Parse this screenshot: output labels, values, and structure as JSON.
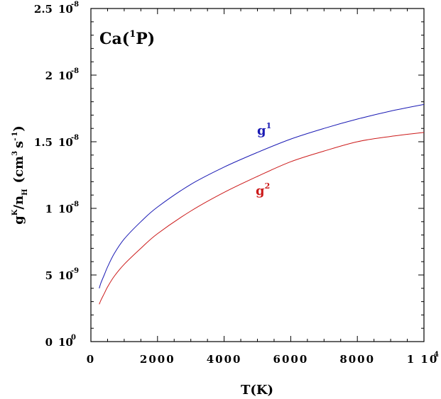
{
  "chart_data": {
    "type": "line",
    "title": {
      "prefix": "Ca(",
      "sup": "1",
      "suffix": "P)"
    },
    "xlabel": "T(K)",
    "ylabel": {
      "g": "g",
      "k": "K",
      "slash": "/",
      "n": "n",
      "H": "H",
      "unit_open": "(cm",
      "cube": "3",
      "s": "s",
      "neg": "-",
      "one": "1",
      "unit_close": ")"
    },
    "xlim": [
      0,
      10000
    ],
    "ylim": [
      0,
      2.5e-08
    ],
    "x_ticks": [
      {
        "value": 0,
        "label": "0",
        "exp": ""
      },
      {
        "value": 2000,
        "label": "2000",
        "exp": ""
      },
      {
        "value": 4000,
        "label": "4000",
        "exp": ""
      },
      {
        "value": 6000,
        "label": "6000",
        "exp": ""
      },
      {
        "value": 8000,
        "label": "8000",
        "exp": ""
      },
      {
        "value": 10000,
        "label": "1 10",
        "exp": "4"
      }
    ],
    "y_ticks": [
      {
        "value": 0,
        "mant": "0",
        "base": "10",
        "exp": "0"
      },
      {
        "value": 5e-09,
        "mant": "5",
        "base": "10",
        "exp": "-9"
      },
      {
        "value": 1e-08,
        "mant": "1",
        "base": "10",
        "exp": "-8"
      },
      {
        "value": 1.5e-08,
        "mant": "1.5",
        "base": "10",
        "exp": "-8"
      },
      {
        "value": 2e-08,
        "mant": "2",
        "base": "10",
        "exp": "-8"
      },
      {
        "value": 2.5e-08,
        "mant": "2.5",
        "base": "10",
        "exp": "-8"
      }
    ],
    "series": [
      {
        "name": "g",
        "name_sup": "1",
        "color": "#1a1ab4",
        "x": [
          250,
          300,
          400,
          500,
          700,
          1000,
          1500,
          2000,
          3000,
          4000,
          5000,
          6000,
          7000,
          8000,
          9000,
          10000
        ],
        "y": [
          4e-09,
          4.4e-09,
          5e-09,
          5.6e-09,
          6.6e-09,
          7.7e-09,
          9e-09,
          1.01e-08,
          1.18e-08,
          1.31e-08,
          1.42e-08,
          1.52e-08,
          1.6e-08,
          1.67e-08,
          1.73e-08,
          1.78e-08
        ]
      },
      {
        "name": "g",
        "name_sup": "2",
        "color": "#cc1a1a",
        "x": [
          250,
          300,
          400,
          500,
          700,
          1000,
          1500,
          2000,
          3000,
          4000,
          5000,
          6000,
          7000,
          8000,
          9000,
          10000
        ],
        "y": [
          2.8e-09,
          3.1e-09,
          3.6e-09,
          4.1e-09,
          4.9e-09,
          5.8e-09,
          7e-09,
          8.1e-09,
          9.8e-09,
          1.12e-08,
          1.24e-08,
          1.35e-08,
          1.43e-08,
          1.5e-08,
          1.54e-08,
          1.57e-08
        ]
      }
    ],
    "legend_placement": "inline labels near curves",
    "grid": false
  }
}
